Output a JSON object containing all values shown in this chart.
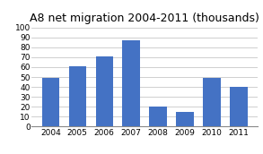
{
  "title": "A8 net migration 2004-2011 (thousands)",
  "categories": [
    "2004",
    "2005",
    "2006",
    "2007",
    "2008",
    "2009",
    "2010",
    "2011"
  ],
  "values": [
    49,
    61,
    71,
    87,
    20,
    15,
    49,
    40
  ],
  "bar_color": "#4472C4",
  "ylim": [
    0,
    100
  ],
  "yticks": [
    0,
    10,
    20,
    30,
    40,
    50,
    60,
    70,
    80,
    90,
    100
  ],
  "background_color": "#ffffff",
  "title_fontsize": 9,
  "tick_fontsize": 6.5,
  "grid_color": "#c8c8c8",
  "bar_width": 0.65
}
